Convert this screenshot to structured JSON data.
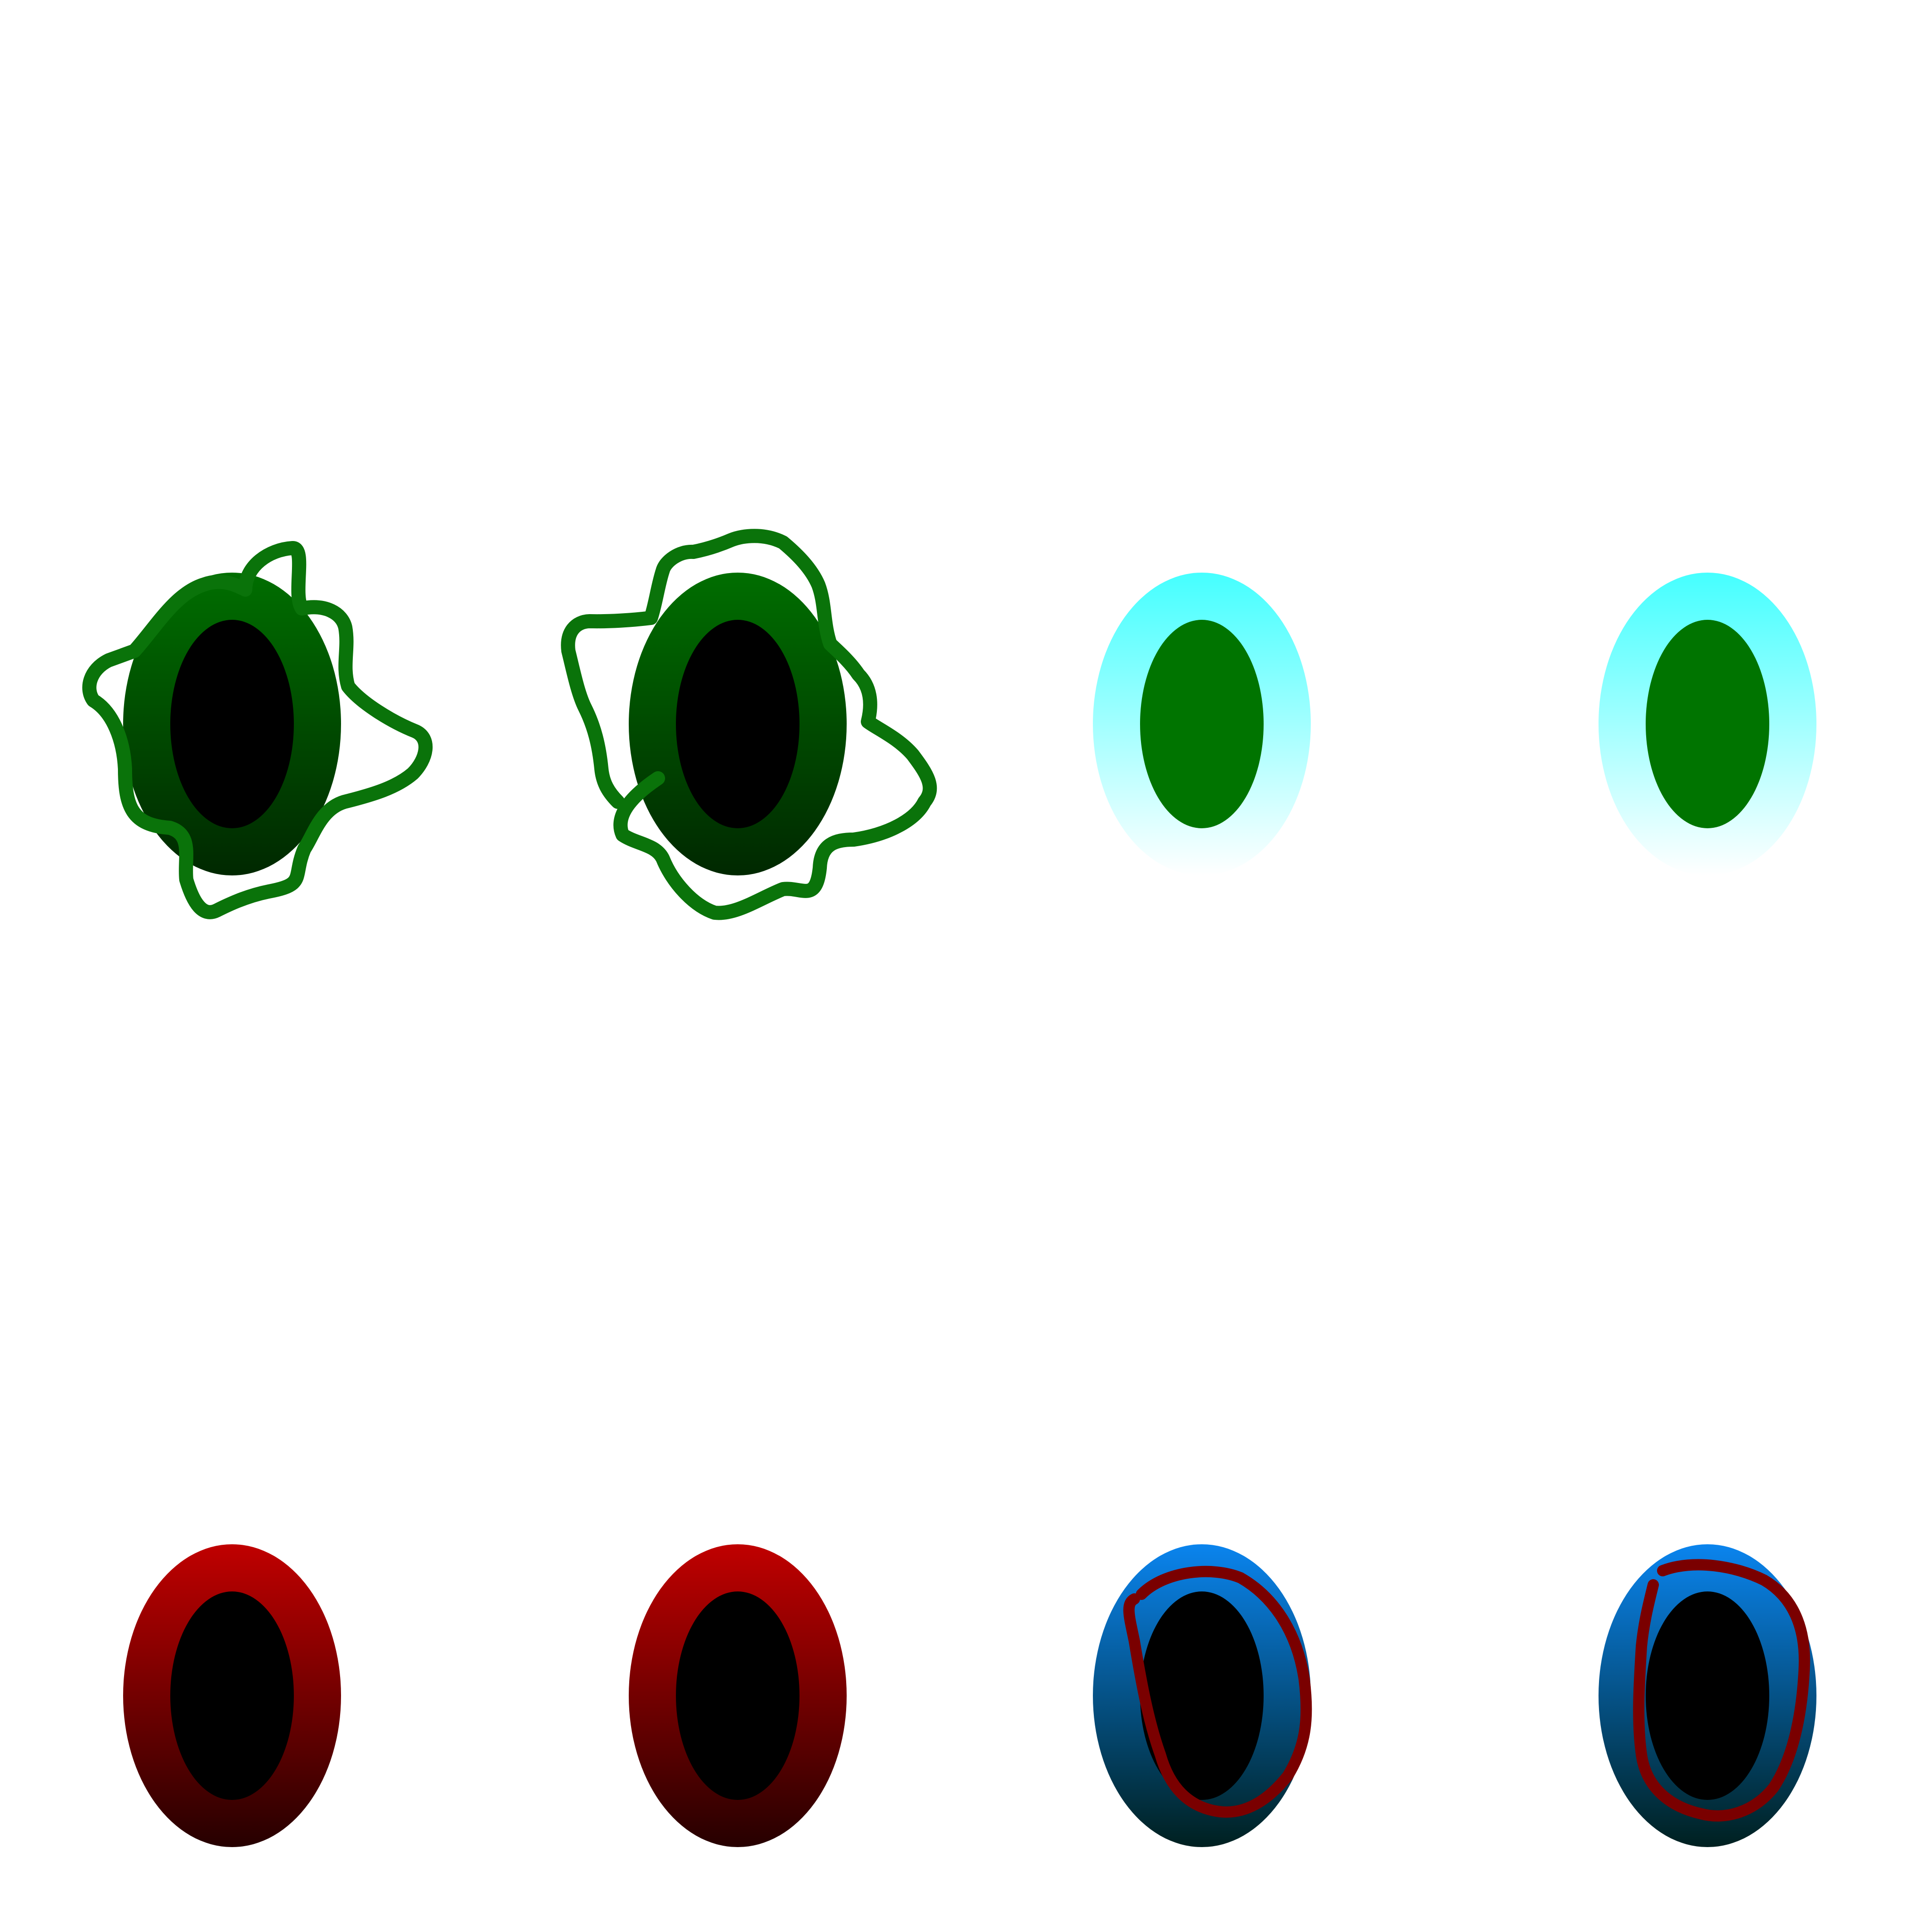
{
  "sheet": {
    "background": "#ffffff",
    "rows": [
      {
        "name": "top-row",
        "eyes": [
          {
            "name": "eye-green-scribble-1",
            "variant": "scribble",
            "outer_top": "#006e00",
            "outer_bottom": "#002800",
            "inner": "#000000",
            "scribble": "#0a730a"
          },
          {
            "name": "eye-green-scribble-2",
            "variant": "scribble",
            "outer_top": "#006e00",
            "outer_bottom": "#002800",
            "inner": "#000000",
            "scribble": "#0a730a"
          },
          {
            "name": "eye-cyan-1",
            "variant": "plain",
            "outer_top": "#45ffff",
            "outer_bottom": "#ffffff",
            "inner": "#007400"
          },
          {
            "name": "eye-cyan-2",
            "variant": "plain",
            "outer_top": "#45ffff",
            "outer_bottom": "#ffffff",
            "inner": "#007400"
          }
        ]
      },
      {
        "name": "bottom-row",
        "eyes": [
          {
            "name": "eye-red-1",
            "variant": "plain",
            "outer_top": "#c00000",
            "outer_bottom": "#260000",
            "inner": "#000000"
          },
          {
            "name": "eye-red-2",
            "variant": "plain",
            "outer_top": "#c00000",
            "outer_bottom": "#260000",
            "inner": "#000000"
          },
          {
            "name": "eye-blue-ring-1",
            "variant": "ring",
            "outer_top": "#0a84ee",
            "outer_bottom": "#002020",
            "inner": "#000000",
            "ring": "#7a0000"
          },
          {
            "name": "eye-blue-ring-2",
            "variant": "ring",
            "outer_top": "#0a84ee",
            "outer_bottom": "#002020",
            "inner": "#000000",
            "ring": "#7a0000"
          }
        ]
      }
    ]
  }
}
